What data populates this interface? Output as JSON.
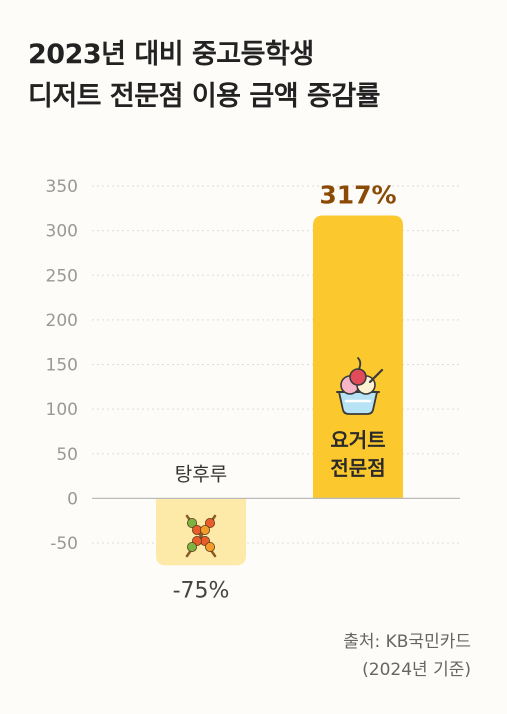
{
  "title": {
    "line1": "2023년 대비 중고등학생",
    "line2": "디저트 전문점 이용 금액 증감률"
  },
  "source": {
    "line1": "출처: KB국민카드",
    "line2": "(2024년 기준)"
  },
  "chart_data": {
    "type": "bar",
    "categories": [
      "탕후루",
      "요거트 전문점"
    ],
    "category_label_lines": [
      [
        "탕후루"
      ],
      [
        "요거트",
        "전문점"
      ]
    ],
    "values": [
      -75,
      317
    ],
    "value_labels": [
      "-75%",
      "317%"
    ],
    "ylim": [
      -50,
      350
    ],
    "yticks": [
      350,
      300,
      250,
      200,
      150,
      100,
      50,
      0,
      -50
    ],
    "grid": true,
    "bar_colors": [
      "#fde9a8",
      "#fbc82e"
    ],
    "value_label_colors": [
      "#444444",
      "#8a4a06"
    ],
    "icons": [
      "skewer-icon",
      "yogurt-sundae-icon"
    ]
  },
  "colors": {
    "background": "#fdfcf8",
    "grid": "#dddddd",
    "axis": "#bbbbbb",
    "tick_label": "#999999"
  }
}
